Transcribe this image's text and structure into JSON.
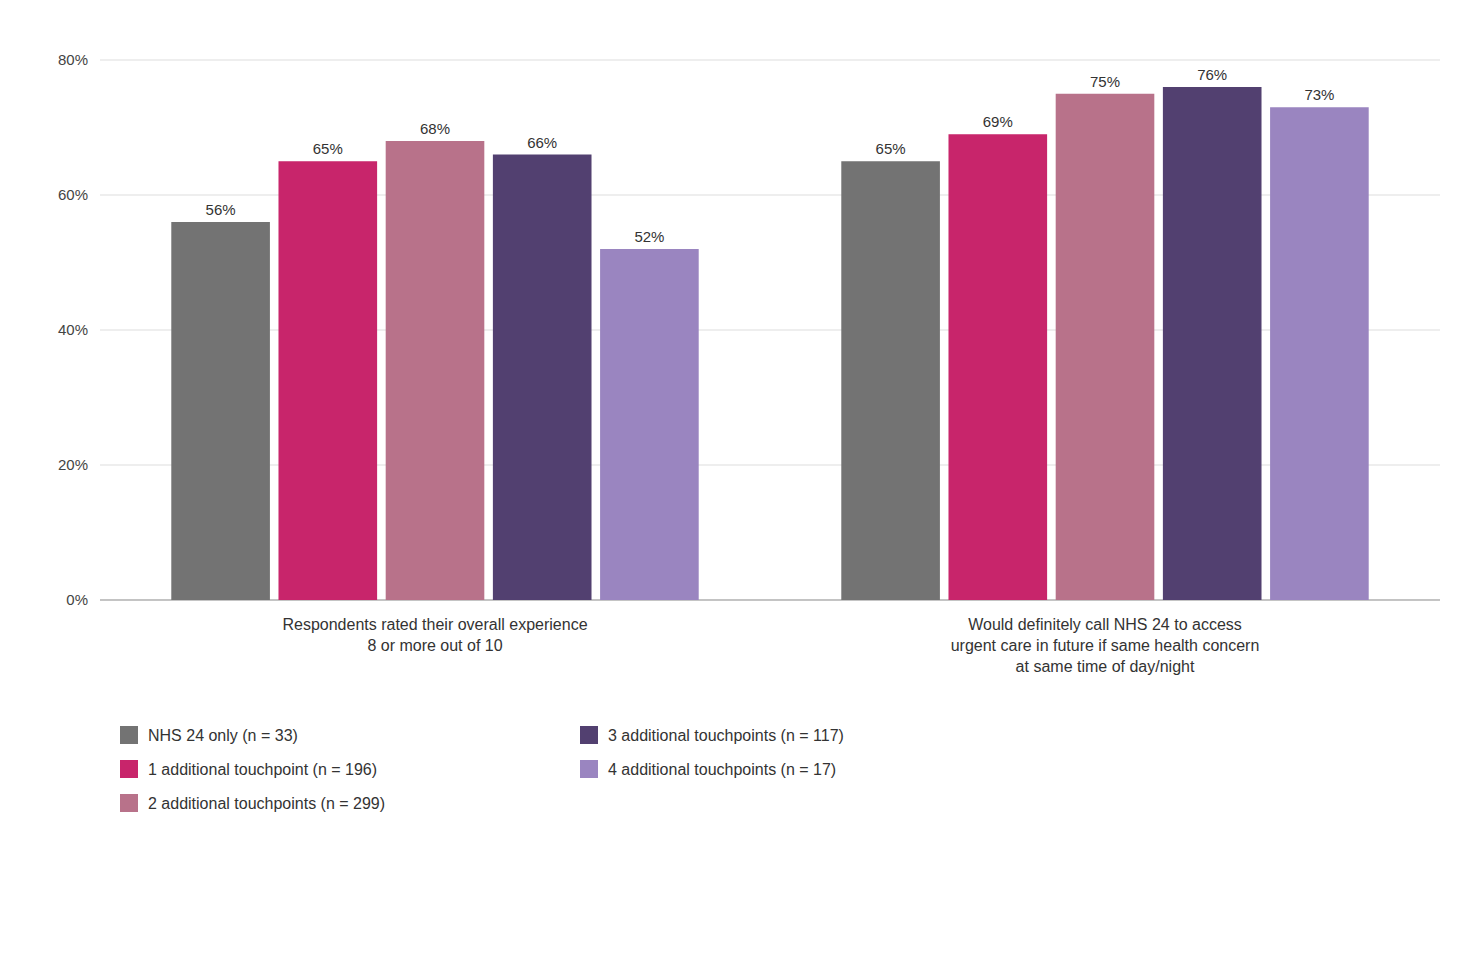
{
  "chart_data": {
    "type": "bar",
    "categories": [
      "Respondents rated their overall experience\n8 or more out of 10",
      "Would definitely call NHS 24 to access\nurgent care in future if same health concern\nat same time of day/night"
    ],
    "series": [
      {
        "name": "NHS 24 only (n = 33)",
        "color": "#737373",
        "values": [
          56,
          65
        ],
        "value_labels": [
          "56%",
          "65%"
        ]
      },
      {
        "name": "1 additional touchpoint (n = 196)",
        "color": "#C8256B",
        "values": [
          65,
          69
        ],
        "value_labels": [
          "65%",
          "69%"
        ]
      },
      {
        "name": "2 additional touchpoints (n = 299)",
        "color": "#B8728A",
        "values": [
          68,
          75
        ],
        "value_labels": [
          "68%",
          "75%"
        ]
      },
      {
        "name": "3 additional touchpoints (n = 117)",
        "color": "#524070",
        "values": [
          66,
          76
        ],
        "value_labels": [
          "66%",
          "76%"
        ]
      },
      {
        "name": "4 additional touchpoints (n = 17)",
        "color": "#9A85C0",
        "values": [
          52,
          73
        ],
        "value_labels": [
          "52%",
          "73%"
        ]
      }
    ],
    "ylim": [
      0,
      80
    ],
    "yticks": [
      {
        "value": 0,
        "label": "0%"
      },
      {
        "value": 20,
        "label": "20%"
      },
      {
        "value": 40,
        "label": "40%"
      },
      {
        "value": 60,
        "label": "60%"
      },
      {
        "value": 80,
        "label": "80%"
      }
    ],
    "grid": true,
    "data_labels": true,
    "legend": "bottom"
  }
}
